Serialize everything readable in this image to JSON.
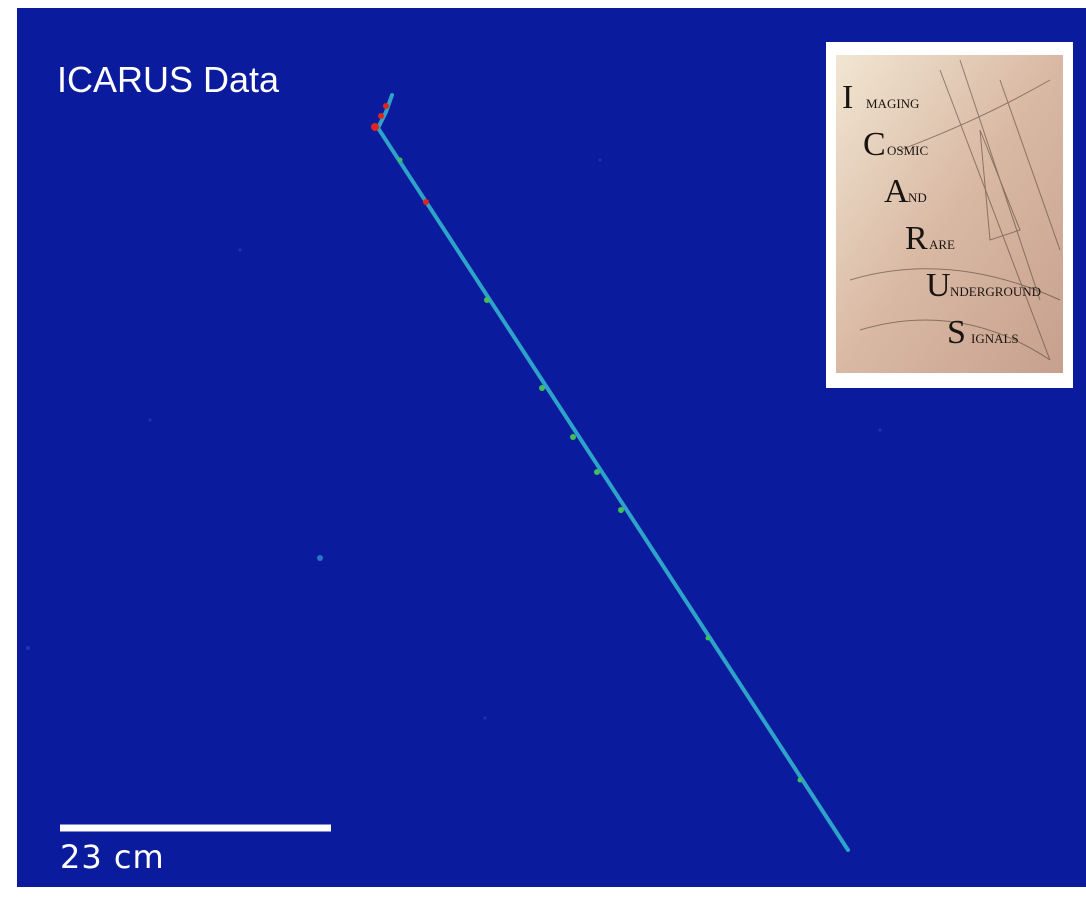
{
  "title": "ICARUS Data",
  "scale_bar": {
    "label": "23 cm"
  },
  "logo": {
    "lines": [
      {
        "initial": "I",
        "rest": "MAGING"
      },
      {
        "initial": "C",
        "rest": "OSMIC"
      },
      {
        "initial": "A",
        "rest": "ND"
      },
      {
        "initial": "R",
        "rest": "ARE"
      },
      {
        "initial": "U",
        "rest": "NDERGROUND"
      },
      {
        "initial": "S",
        "rest": "IGNALS"
      }
    ]
  }
}
